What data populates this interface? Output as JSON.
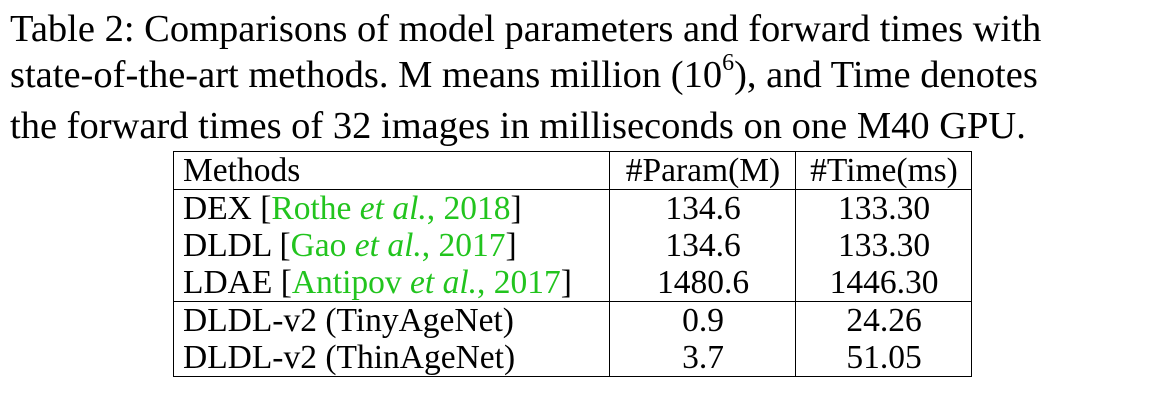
{
  "caption": {
    "line1": "Table 2: Comparisons of model parameters and forward times with",
    "line2_pre": "state-of-the-art methods. M means million (10",
    "line2_sup": "6",
    "line2_post": "), and Time denotes",
    "line3": "the forward times of 32 images in milliseconds on one M40 GPU."
  },
  "table": {
    "headers": [
      "Methods",
      "#Param(M)",
      "#Time(ms)"
    ],
    "rows": [
      {
        "method": "DEX",
        "cite_author": "Rothe",
        "cite_etal": "et al.",
        "cite_year": ", 2018",
        "param": "134.6",
        "time": "133.30"
      },
      {
        "method": "DLDL",
        "cite_author": "Gao",
        "cite_etal": "et al.",
        "cite_year": ", 2017",
        "param": "134.6",
        "time": "133.30"
      },
      {
        "method": "LDAE",
        "cite_author": "Antipov",
        "cite_etal": "et al.",
        "cite_year": ", 2017",
        "param": "1480.6",
        "time": "1446.30"
      },
      {
        "method": "DLDL-v2 (TinyAgeNet)",
        "param": "0.9",
        "time": "24.26"
      },
      {
        "method": "DLDL-v2 (ThinAgeNet)",
        "param": "3.7",
        "time": "51.05"
      }
    ]
  },
  "colors": {
    "citation": "#22c41e",
    "text": "#000000"
  }
}
